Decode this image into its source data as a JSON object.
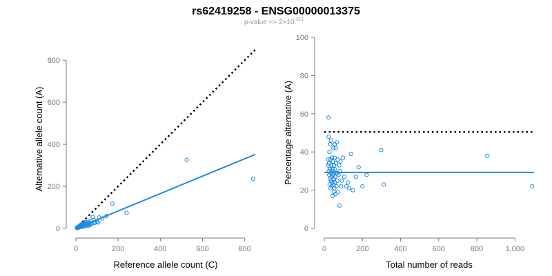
{
  "figure": {
    "title": "rs62419258 - ENSG00000013375",
    "subtitle": {
      "prefix": "p-value <= 2×10",
      "exponent": "-311"
    }
  },
  "colors": {
    "points": "#1e88e5",
    "fit_line": "#1e88e5",
    "reference_line": "#000000",
    "axis": "#7a7a7a"
  },
  "chart_data": [
    {
      "type": "scatter",
      "xlabel": "Reference allele count (C)",
      "ylabel": "Alternative allele count (A)",
      "xlim": [
        0,
        850
      ],
      "ylim": [
        0,
        850
      ],
      "xticks": [
        0,
        200,
        400,
        600,
        800
      ],
      "xtick_labels": [
        "0",
        "200",
        "400",
        "600",
        "800"
      ],
      "yticks": [
        0,
        200,
        400,
        600,
        800
      ],
      "ytick_labels": [
        "0",
        "200",
        "400",
        "600",
        "800"
      ],
      "reference_line": {
        "style": "dotted",
        "points": [
          [
            0,
            0
          ],
          [
            850,
            850
          ]
        ]
      },
      "fit_line": {
        "style": "solid",
        "points": [
          [
            0,
            0
          ],
          [
            850,
            352
          ]
        ]
      },
      "points": [
        [
          840,
          236
        ],
        [
          525,
          326
        ],
        [
          240,
          74
        ],
        [
          172,
          118
        ],
        [
          145,
          58
        ],
        [
          125,
          47
        ],
        [
          110,
          52
        ],
        [
          100,
          32
        ],
        [
          92,
          30
        ],
        [
          85,
          40
        ],
        [
          80,
          55
        ],
        [
          76,
          25
        ],
        [
          70,
          35
        ],
        [
          68,
          18
        ],
        [
          64,
          28
        ],
        [
          60,
          22
        ],
        [
          58,
          32
        ],
        [
          55,
          12
        ],
        [
          52,
          20
        ],
        [
          50,
          26
        ],
        [
          48,
          15
        ],
        [
          46,
          22
        ],
        [
          44,
          10
        ],
        [
          42,
          18
        ],
        [
          40,
          24
        ],
        [
          38,
          14
        ],
        [
          36,
          19
        ],
        [
          34,
          8
        ],
        [
          32,
          16
        ],
        [
          30,
          12
        ],
        [
          28,
          20
        ],
        [
          26,
          10
        ],
        [
          25,
          14
        ],
        [
          23,
          8
        ],
        [
          21,
          12
        ],
        [
          20,
          6
        ],
        [
          18,
          10
        ],
        [
          16,
          7
        ],
        [
          15,
          5
        ],
        [
          13,
          9
        ],
        [
          12,
          4
        ],
        [
          10,
          6
        ],
        [
          9,
          3
        ],
        [
          8,
          5
        ],
        [
          7,
          2
        ],
        [
          6,
          4
        ],
        [
          5,
          2
        ],
        [
          22,
          16
        ],
        [
          35,
          22
        ],
        [
          45,
          30
        ],
        [
          62,
          14
        ],
        [
          72,
          20
        ],
        [
          88,
          26
        ],
        [
          105,
          28
        ]
      ]
    },
    {
      "type": "scatter",
      "xlabel": "Total number of reads",
      "ylabel": "Percentage alternative (A)",
      "xlim": [
        0,
        1100
      ],
      "ylim": [
        0,
        100
      ],
      "xticks": [
        0,
        200,
        400,
        600,
        800,
        1000
      ],
      "xtick_labels": [
        "0",
        "200",
        "400",
        "600",
        "800",
        "1,000"
      ],
      "yticks": [
        0,
        20,
        40,
        60,
        80,
        100
      ],
      "ytick_labels": [
        "0",
        "20",
        "40",
        "60",
        "80",
        "100"
      ],
      "reference_line": {
        "style": "dotted",
        "points": [
          [
            0,
            50.5
          ],
          [
            1100,
            50.5
          ]
        ]
      },
      "fit_line": {
        "style": "solid",
        "points": [
          [
            0,
            29.3
          ],
          [
            1100,
            29.3
          ]
        ]
      },
      "points": [
        [
          1090,
          22
        ],
        [
          855,
          38
        ],
        [
          312,
          23
        ],
        [
          298,
          41
        ],
        [
          222,
          28
        ],
        [
          200,
          22
        ],
        [
          180,
          32
        ],
        [
          165,
          27
        ],
        [
          150,
          20
        ],
        [
          140,
          39
        ],
        [
          130,
          21
        ],
        [
          125,
          24
        ],
        [
          115,
          22
        ],
        [
          105,
          27
        ],
        [
          98,
          37
        ],
        [
          92,
          25
        ],
        [
          88,
          22
        ],
        [
          85,
          35
        ],
        [
          82,
          30
        ],
        [
          80,
          12
        ],
        [
          78,
          33
        ],
        [
          75,
          28
        ],
        [
          72,
          19
        ],
        [
          70,
          36
        ],
        [
          68,
          25
        ],
        [
          66,
          29
        ],
        [
          64,
          22
        ],
        [
          62,
          34
        ],
        [
          60,
          42
        ],
        [
          58,
          18
        ],
        [
          57,
          27
        ],
        [
          56,
          31
        ],
        [
          55,
          24
        ],
        [
          54,
          37
        ],
        [
          53,
          21
        ],
        [
          52,
          29
        ],
        [
          51,
          33
        ],
        [
          50,
          19
        ],
        [
          49,
          26
        ],
        [
          48,
          42
        ],
        [
          47,
          23
        ],
        [
          46,
          28
        ],
        [
          45,
          35
        ],
        [
          44,
          31
        ],
        [
          43,
          17
        ],
        [
          42,
          24
        ],
        [
          41,
          30
        ],
        [
          40,
          37
        ],
        [
          39,
          22
        ],
        [
          38,
          27
        ],
        [
          37,
          33
        ],
        [
          36,
          46
        ],
        [
          35,
          25
        ],
        [
          34,
          29
        ],
        [
          33,
          21
        ],
        [
          32,
          36
        ],
        [
          31,
          44
        ],
        [
          30,
          26
        ],
        [
          29,
          31
        ],
        [
          28,
          23
        ],
        [
          27,
          40
        ],
        [
          26,
          28
        ],
        [
          25,
          34
        ],
        [
          24,
          30
        ],
        [
          23,
          48
        ],
        [
          22,
          58
        ],
        [
          21,
          36
        ],
        [
          20,
          33
        ],
        [
          65,
          45
        ],
        [
          55,
          44
        ]
      ]
    }
  ]
}
